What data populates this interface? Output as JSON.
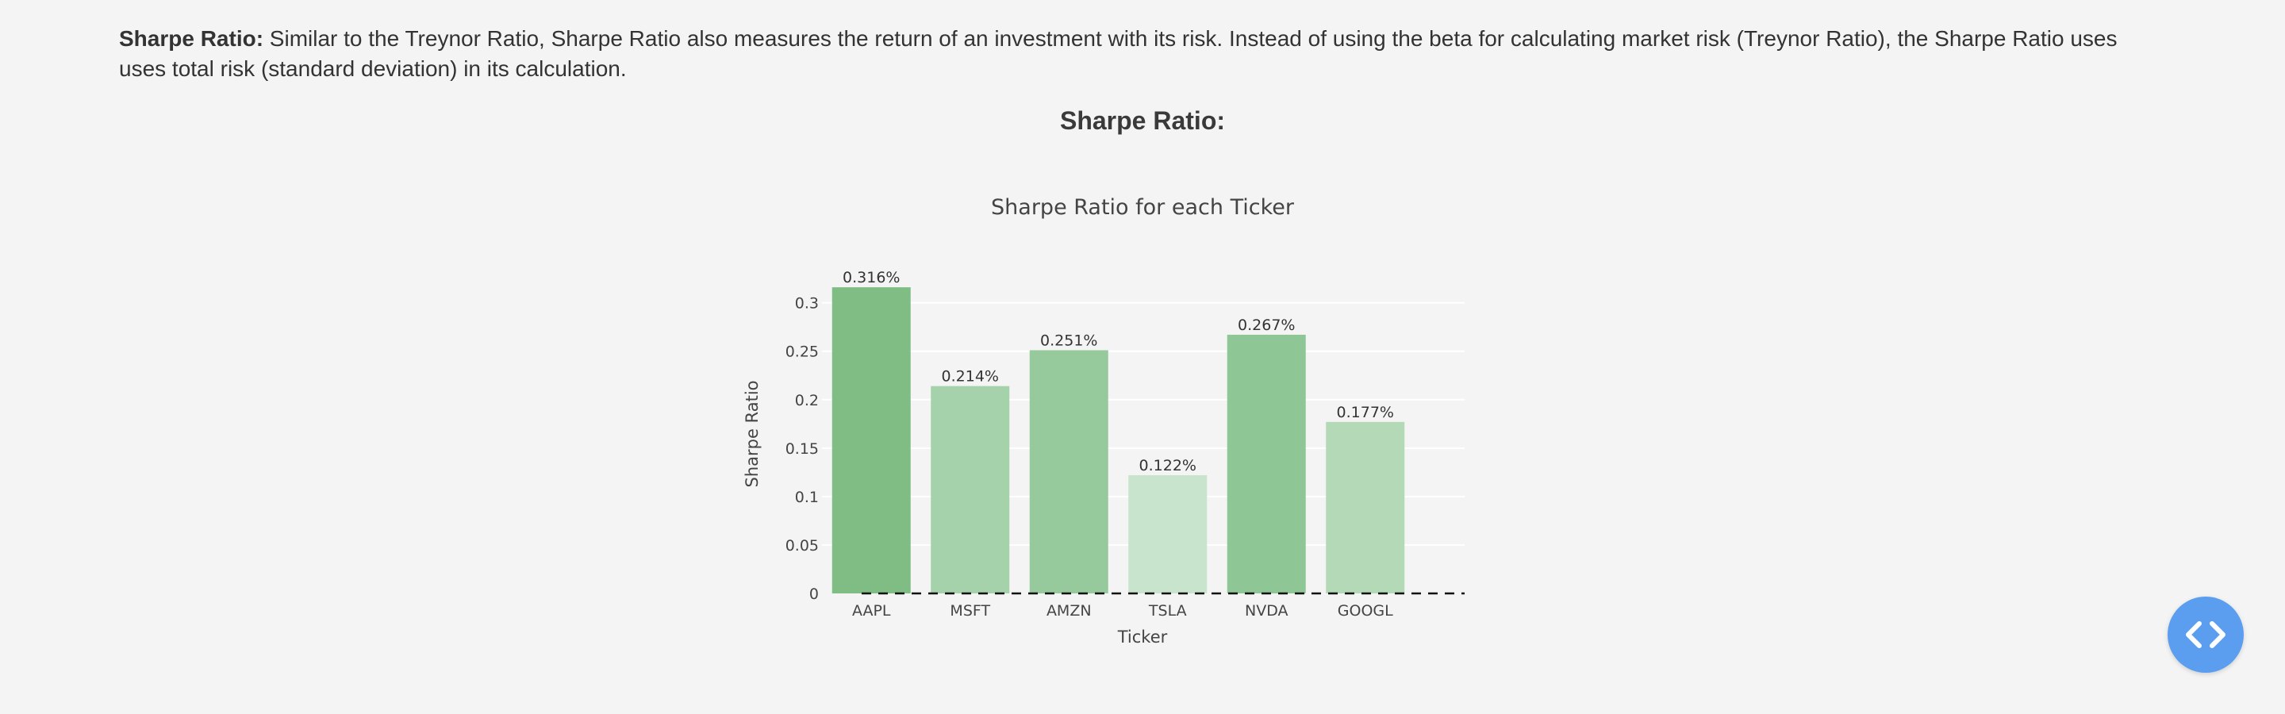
{
  "intro": {
    "lead": "Sharpe Ratio:",
    "text": " Similar to the Treynor Ratio, Sharpe Ratio also measures the return of an investment with its risk. Instead of using the beta for calculating market risk (Treynor Ratio), the Sharpe Ratio uses uses total risk (standard deviation) in its calculation."
  },
  "section_title": "Sharpe Ratio:",
  "fab": {
    "icon": "code-brackets-icon",
    "color": "#5b9ef0"
  },
  "chart_data": {
    "type": "bar",
    "title": "Sharpe Ratio for each Ticker",
    "xlabel": "Ticker",
    "ylabel": "Sharpe Ratio",
    "categories": [
      "AAPL",
      "MSFT",
      "AMZN",
      "TSLA",
      "NVDA",
      "GOOGL"
    ],
    "values": [
      0.316,
      0.214,
      0.251,
      0.122,
      0.267,
      0.177
    ],
    "data_labels": [
      "0.316%",
      "0.214%",
      "0.251%",
      "0.122%",
      "0.267%",
      "0.177%"
    ],
    "colors": [
      "#7fbd85",
      "#a6d2ab",
      "#96c99c",
      "#c9e4cc",
      "#8fc696",
      "#b3d9b7"
    ],
    "ylim": [
      0,
      0.33
    ],
    "yticks": [
      0,
      0.05,
      0.1,
      0.15,
      0.2,
      0.25,
      0.3
    ],
    "ytick_labels": [
      "0",
      "0.05",
      "0.1",
      "0.15",
      "0.2",
      "0.25",
      "0.3"
    ],
    "reference_line": {
      "y": 0,
      "style": "dashed"
    },
    "grid": true,
    "legend": "none"
  }
}
